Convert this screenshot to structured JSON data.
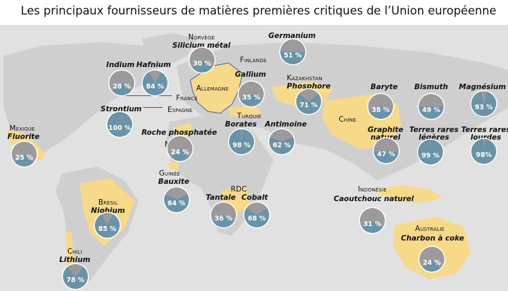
{
  "title": "Les principaux fournisseurs de matières premières critiques de l’Union européenne",
  "colors": {
    "pie_share": "#6a93a8",
    "pie_rest": "#9c9a9a",
    "highlight": "#f7d98a",
    "land": "#cfcfcf",
    "eu": "#f7d98a",
    "eu_border": "#3b5fa8"
  },
  "labels": [
    {
      "id": "norvege",
      "text": "Norvège",
      "kind": "country"
    },
    {
      "id": "silicium",
      "text": "Silicium métal",
      "kind": "mat"
    },
    {
      "id": "germanium",
      "text": "Germanium",
      "kind": "mat"
    },
    {
      "id": "finlande",
      "text": "Finlande",
      "kind": "country"
    },
    {
      "id": "indium",
      "text": "Indium",
      "kind": "mat"
    },
    {
      "id": "hafnium",
      "text": "Hafnium",
      "kind": "mat"
    },
    {
      "id": "gallium",
      "text": "Gallium",
      "kind": "mat"
    },
    {
      "id": "kazakhstan",
      "text": "Kazakhstan",
      "kind": "country"
    },
    {
      "id": "phosphore",
      "text": "Phosphore",
      "kind": "mat"
    },
    {
      "id": "allemagne",
      "text": "Allemagne",
      "kind": "country"
    },
    {
      "id": "france",
      "text": "France",
      "kind": "country"
    },
    {
      "id": "espagne",
      "text": "Espagne",
      "kind": "country"
    },
    {
      "id": "strontium",
      "text": "Strontium",
      "kind": "mat"
    },
    {
      "id": "baryte",
      "text": "Baryte",
      "kind": "mat"
    },
    {
      "id": "bismuth",
      "text": "Bismuth",
      "kind": "mat"
    },
    {
      "id": "magnesium",
      "text": "Magnésium",
      "kind": "mat"
    },
    {
      "id": "turquie",
      "text": "Turquie",
      "kind": "country"
    },
    {
      "id": "borates",
      "text": "Borates",
      "kind": "mat"
    },
    {
      "id": "antimoine",
      "text": "Antimoine",
      "kind": "mat"
    },
    {
      "id": "chine",
      "text": "Chine",
      "kind": "country"
    },
    {
      "id": "mexique",
      "text": "Mexique",
      "kind": "country"
    },
    {
      "id": "fluorite",
      "text": "Fluorite",
      "kind": "mat"
    },
    {
      "id": "graphite1",
      "text": "Graphite",
      "kind": "mat"
    },
    {
      "id": "graphite2",
      "text": "naturel",
      "kind": "mat"
    },
    {
      "id": "trl1",
      "text": "Terres rares",
      "kind": "mat"
    },
    {
      "id": "trl2",
      "text": "légères",
      "kind": "mat"
    },
    {
      "id": "trh1",
      "text": "Terres rares",
      "kind": "mat"
    },
    {
      "id": "trh2",
      "text": "lourdes",
      "kind": "mat"
    },
    {
      "id": "maroc",
      "text": "Maroc",
      "kind": "country"
    },
    {
      "id": "roche",
      "text": "Roche phosphatée",
      "kind": "mat"
    },
    {
      "id": "guinee",
      "text": "Guinée",
      "kind": "country"
    },
    {
      "id": "bauxite",
      "text": "Bauxite",
      "kind": "mat"
    },
    {
      "id": "rdc",
      "text": "RDC",
      "kind": "country"
    },
    {
      "id": "tantale",
      "text": "Tantale",
      "kind": "mat"
    },
    {
      "id": "cobalt",
      "text": "Cobalt",
      "kind": "mat"
    },
    {
      "id": "indonesie",
      "text": "Indonésie",
      "kind": "country"
    },
    {
      "id": "caoutchouc",
      "text": "Caoutchouc naturel",
      "kind": "mat"
    },
    {
      "id": "bresil",
      "text": "Brésil",
      "kind": "country"
    },
    {
      "id": "niobium",
      "text": "Niobium",
      "kind": "mat"
    },
    {
      "id": "australie",
      "text": "Australie",
      "kind": "country"
    },
    {
      "id": "charbon",
      "text": "Charbon à coke",
      "kind": "mat"
    },
    {
      "id": "chili",
      "text": "Chili",
      "kind": "country"
    },
    {
      "id": "lithium",
      "text": "Lithium",
      "kind": "mat"
    }
  ],
  "pies": [
    {
      "id": "silicium",
      "material": "Silicium métal",
      "country": "Norvège",
      "value": 30,
      "label": "30 %"
    },
    {
      "id": "germanium",
      "material": "Germanium",
      "country": "Finlande",
      "value": 51,
      "label": "51 %"
    },
    {
      "id": "indium",
      "material": "Indium",
      "country": "France",
      "value": 28,
      "label": "28 %"
    },
    {
      "id": "hafnium",
      "material": "Hafnium",
      "country": "France",
      "value": 84,
      "label": "84 %"
    },
    {
      "id": "gallium",
      "material": "Gallium",
      "country": "Allemagne",
      "value": 35,
      "label": "35 %"
    },
    {
      "id": "phosphore",
      "material": "Phosphore",
      "country": "Kazakhstan",
      "value": 71,
      "label": "71 %"
    },
    {
      "id": "strontium",
      "material": "Strontium",
      "country": "Espagne",
      "value": 100,
      "label": "100 %"
    },
    {
      "id": "baryte",
      "material": "Baryte",
      "country": "Chine",
      "value": 38,
      "label": "38 %"
    },
    {
      "id": "bismuth",
      "material": "Bismuth",
      "country": "Chine",
      "value": 49,
      "label": "49 %"
    },
    {
      "id": "magnesium",
      "material": "Magnésium",
      "country": "Chine",
      "value": 93,
      "label": "93 %"
    },
    {
      "id": "borates",
      "material": "Borates",
      "country": "Turquie",
      "value": 98,
      "label": "98 %"
    },
    {
      "id": "antimoine",
      "material": "Antimoine",
      "country": "Turquie",
      "value": 62,
      "label": "62 %"
    },
    {
      "id": "fluorite",
      "material": "Fluorite",
      "country": "Mexique",
      "value": 25,
      "label": "25 %"
    },
    {
      "id": "graphite",
      "material": "Graphite naturel",
      "country": "Chine",
      "value": 47,
      "label": "47 %"
    },
    {
      "id": "trl",
      "material": "Terres rares légères",
      "country": "Chine",
      "value": 99,
      "label": "99 %"
    },
    {
      "id": "trh",
      "material": "Terres rares lourdes",
      "country": "Chine",
      "value": 98,
      "label": "98%"
    },
    {
      "id": "roche",
      "material": "Roche phosphatée",
      "country": "Maroc",
      "value": 24,
      "label": "24 %"
    },
    {
      "id": "bauxite",
      "material": "Bauxite",
      "country": "Guinée",
      "value": 64,
      "label": "64 %"
    },
    {
      "id": "tantale",
      "material": "Tantale",
      "country": "RDC",
      "value": 36,
      "label": "36 %"
    },
    {
      "id": "cobalt",
      "material": "Cobalt",
      "country": "RDC",
      "value": 68,
      "label": "68 %"
    },
    {
      "id": "caoutchouc",
      "material": "Caoutchouc naturel",
      "country": "Indonésie",
      "value": 31,
      "label": "31 %"
    },
    {
      "id": "niobium",
      "material": "Niobium",
      "country": "Brésil",
      "value": 85,
      "label": "85 %"
    },
    {
      "id": "charbon",
      "material": "Charbon à coke",
      "country": "Australie",
      "value": 24,
      "label": "24 %"
    },
    {
      "id": "lithium",
      "material": "Lithium",
      "country": "Chili",
      "value": 78,
      "label": "78 %"
    }
  ]
}
